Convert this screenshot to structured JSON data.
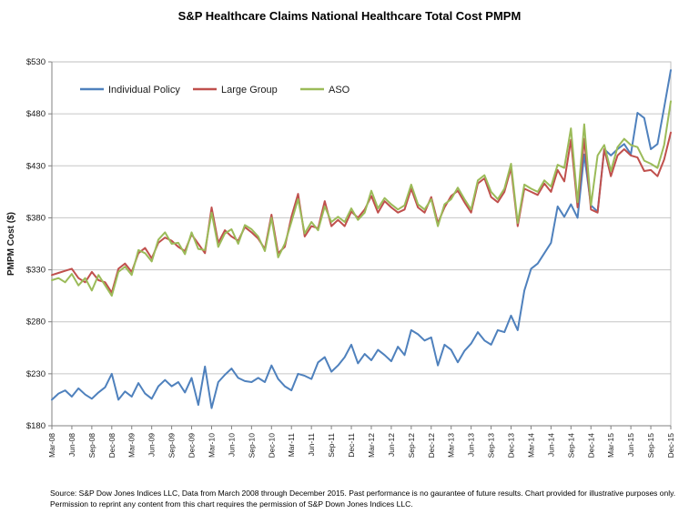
{
  "title": "S&P Healthcare Claims National Healthcare Total Cost PMPM",
  "source_line1": "Source: S&P Dow Jones Indices LLC, Data from March 2008 through December 2015. Past performance is no gaurantee of future results. Chart provided for illustrative purposes only.",
  "source_line2": "Permission to reprint  any content from this chart requires the permission of S&P Down Jones Indices LLC.",
  "chart_data": {
    "type": "line",
    "title": "S&P Healthcare Claims National Healthcare Total Cost PMPM",
    "ylabel": "PMPM Cost ($)",
    "ylim": [
      180,
      530
    ],
    "ytick_step": 50,
    "ytick_prefix": "$",
    "grid": true,
    "legend_position": "top-left-inside",
    "x_start": "Mar-08",
    "x_end": "Dec-15",
    "xtick_every": 3,
    "xtick_labels": [
      "Mar-08",
      "Jun-08",
      "Sep-08",
      "Dec-08",
      "Mar-09",
      "Jun-09",
      "Sep-09",
      "Dec-09",
      "Mar-10",
      "Jun-10",
      "Sep-10",
      "Dec-10",
      "Mar-11",
      "Jun-11",
      "Sep-11",
      "Dec-11",
      "Mar-12",
      "Jun-12",
      "Sep-12",
      "Dec-12",
      "Mar-13",
      "Jun-13",
      "Sep-13",
      "Dec-13",
      "Mar-14",
      "Jun-14",
      "Sep-14",
      "Dec-14",
      "Mar-15",
      "Jun-15",
      "Sep-15",
      "Dec-15"
    ],
    "series": [
      {
        "name": "Individual Policy",
        "color": "#4F81BD",
        "values": [
          205,
          211,
          214,
          208,
          216,
          210,
          206,
          212,
          217,
          230,
          205,
          213,
          208,
          221,
          211,
          206,
          218,
          224,
          218,
          222,
          212,
          226,
          200,
          237,
          197,
          222,
          229,
          235,
          226,
          223,
          222,
          226,
          222,
          238,
          225,
          218,
          214,
          230,
          228,
          225,
          241,
          246,
          232,
          238,
          246,
          258,
          240,
          249,
          243,
          253,
          248,
          242,
          256,
          248,
          272,
          268,
          262,
          265,
          238,
          258,
          253,
          241,
          252,
          259,
          270,
          262,
          258,
          272,
          270,
          286,
          272,
          310,
          331,
          336,
          346,
          356,
          391,
          381,
          393,
          380,
          441,
          392,
          386,
          446,
          440,
          446,
          451,
          441,
          481,
          476,
          446,
          451,
          486,
          522
        ]
      },
      {
        "name": "Large Group",
        "color": "#C0504D",
        "values": [
          325,
          327,
          329,
          331,
          322,
          318,
          328,
          320,
          318,
          308,
          331,
          336,
          328,
          346,
          351,
          341,
          356,
          361,
          358,
          352,
          348,
          364,
          355,
          346,
          390,
          356,
          368,
          362,
          358,
          371,
          366,
          360,
          350,
          383,
          346,
          352,
          381,
          403,
          362,
          372,
          370,
          396,
          372,
          378,
          372,
          386,
          380,
          388,
          401,
          385,
          396,
          390,
          385,
          388,
          408,
          390,
          385,
          400,
          375,
          390,
          401,
          406,
          395,
          385,
          413,
          418,
          400,
          395,
          405,
          428,
          372,
          408,
          405,
          402,
          413,
          405,
          426,
          415,
          455,
          390,
          456,
          388,
          385,
          446,
          420,
          440,
          446,
          440,
          438,
          425,
          426,
          420,
          436,
          462
        ]
      },
      {
        "name": "ASO",
        "color": "#9BBB59",
        "values": [
          320,
          322,
          318,
          326,
          315,
          322,
          310,
          325,
          315,
          305,
          328,
          333,
          325,
          349,
          346,
          338,
          359,
          366,
          355,
          356,
          345,
          366,
          350,
          349,
          385,
          352,
          365,
          369,
          355,
          373,
          369,
          362,
          348,
          380,
          342,
          355,
          376,
          398,
          365,
          376,
          368,
          391,
          376,
          381,
          376,
          389,
          378,
          385,
          406,
          389,
          399,
          393,
          388,
          392,
          412,
          393,
          388,
          398,
          372,
          393,
          398,
          409,
          398,
          388,
          416,
          421,
          405,
          398,
          408,
          432,
          375,
          412,
          408,
          405,
          416,
          410,
          431,
          428,
          466,
          395,
          470,
          392,
          440,
          450,
          425,
          448,
          456,
          450,
          448,
          435,
          432,
          428,
          450,
          492
        ]
      }
    ]
  }
}
